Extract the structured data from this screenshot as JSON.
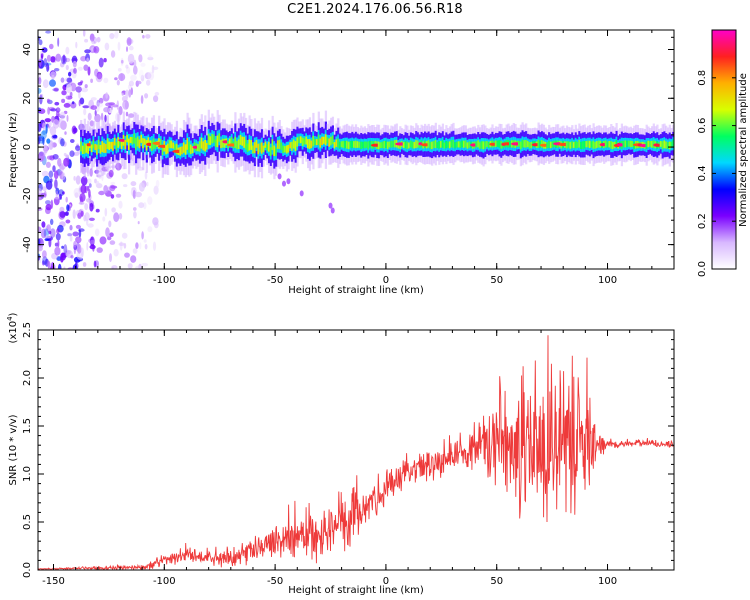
{
  "title": "C2E1.2024.176.06.56.R18",
  "chart_data": [
    {
      "type": "heatmap",
      "xlabel": "Height of straight line (km)",
      "ylabel": "Frequency (Hz)",
      "xlim": [
        -157,
        130
      ],
      "ylim": [
        -50,
        48
      ],
      "xticks": [
        -150,
        -100,
        -50,
        0,
        50,
        100
      ],
      "yticks": [
        -40,
        -20,
        0,
        20,
        40
      ],
      "colorbar": {
        "label": "Normalized spectral amplitude",
        "range": [
          0,
          1
        ],
        "ticks": [
          "0.0",
          "0.2",
          "0.4",
          "0.6",
          "0.8"
        ],
        "colors": [
          "#ffffff",
          "#d8b8ff",
          "#7a00ff",
          "#0000ff",
          "#00d8ff",
          "#00ff60",
          "#d8ff00",
          "#ffb000",
          "#ff2020",
          "#ff00c8"
        ]
      },
      "features": {
        "scatter_region_x": [
          -157,
          -103
        ],
        "band_start_x": -138,
        "band_center_hz": 1,
        "band_halfwidth_hz": 4,
        "band_peak_from_x": -22
      }
    },
    {
      "type": "line",
      "xlabel": "Height of straight line (km)",
      "ylabel": "SNR (10 * v/v)",
      "scale_label": "(x10",
      "scale_exponent": "4",
      "scale_close": ")",
      "xlim": [
        -157,
        130
      ],
      "ylim": [
        0,
        2.5
      ],
      "xticks": [
        -150,
        -100,
        -50,
        0,
        50,
        100
      ],
      "yticks": [
        "0.0",
        "0.5",
        "1.0",
        "1.5",
        "2.0",
        "2.5"
      ],
      "series": [
        {
          "color": "#ee3a3a",
          "envelope_x": [
            -157,
            -130,
            -110,
            -100,
            -90,
            -80,
            -70,
            -60,
            -50,
            -40,
            -30,
            -20,
            -10,
            0,
            10,
            20,
            30,
            40,
            50,
            60,
            70,
            80,
            90,
            95,
            100,
            110,
            120,
            130
          ],
          "envelope_base": [
            0.01,
            0.02,
            0.03,
            0.1,
            0.15,
            0.12,
            0.12,
            0.2,
            0.3,
            0.35,
            0.4,
            0.45,
            0.65,
            0.85,
            1.0,
            1.1,
            1.2,
            1.25,
            1.3,
            1.3,
            1.3,
            1.3,
            1.3,
            1.28,
            1.3,
            1.32,
            1.32,
            1.3
          ],
          "envelope_spread": [
            0.005,
            0.02,
            0.03,
            0.1,
            0.1,
            0.1,
            0.1,
            0.15,
            0.2,
            0.3,
            0.4,
            0.5,
            0.25,
            0.2,
            0.2,
            0.2,
            0.2,
            0.3,
            0.7,
            0.8,
            1.0,
            0.9,
            0.8,
            0.2,
            0.05,
            0.04,
            0.04,
            0.04
          ]
        }
      ]
    }
  ]
}
